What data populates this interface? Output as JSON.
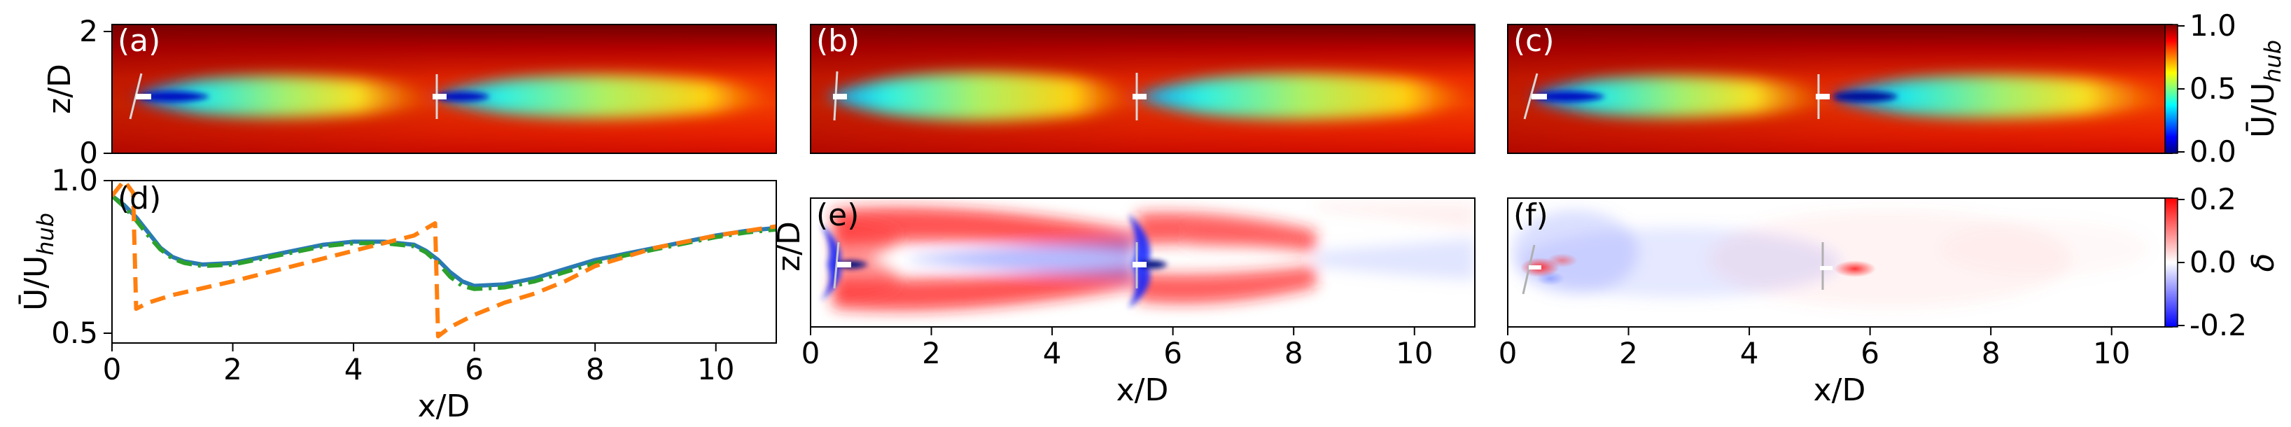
{
  "panels": {
    "a": {
      "label": "(a)",
      "label_color": "#ffffff"
    },
    "b": {
      "label": "(b)",
      "label_color": "#ffffff"
    },
    "c": {
      "label": "(c)",
      "label_color": "#ffffff"
    },
    "d": {
      "label": "(d)",
      "label_color": "#000000"
    },
    "e": {
      "label": "(e)",
      "label_color": "#000000"
    },
    "f": {
      "label": "(f)",
      "label_color": "#000000"
    }
  },
  "labels": {
    "x": "x/D",
    "z": "z/D",
    "ubar_main": "Ū/U",
    "ubar_sub": "hub",
    "delta": "δ"
  },
  "colorbars": {
    "top": {
      "ticks": [
        "1.0",
        "0.5",
        "0.0"
      ],
      "range": [
        0.0,
        1.0
      ],
      "colormap": "jet"
    },
    "bottom": {
      "ticks": [
        "0.2",
        "0.0",
        "-0.2"
      ],
      "range": [
        -0.2,
        0.2
      ],
      "colormap": "bwr"
    }
  },
  "ticks": {
    "x": [
      "0",
      "2",
      "4",
      "6",
      "8",
      "10"
    ],
    "z_top": [
      "2",
      "0"
    ],
    "d_y": [
      "1.0",
      "0.5"
    ]
  },
  "colors": {
    "blue": "#2a7ab4",
    "orange": "#ff7f0e",
    "green": "#2ca02c",
    "dark_red": "#7a0000",
    "wake_blue": "#00c8ff"
  },
  "chart_data": [
    {
      "panel": "a",
      "type": "heatmap",
      "xlabel": "",
      "ylabel": "z/D",
      "xlim": [
        0,
        11
      ],
      "ylim": [
        0,
        2.2
      ],
      "turbines_x": [
        0.4,
        5.4
      ]
    },
    {
      "panel": "b",
      "type": "heatmap",
      "xlabel": "",
      "ylabel": "",
      "xlim": [
        0,
        11
      ],
      "ylim": [
        0,
        2.2
      ],
      "turbines_x": [
        0.4,
        5.4
      ]
    },
    {
      "panel": "c",
      "type": "heatmap",
      "xlabel": "",
      "ylabel": "",
      "xlim": [
        0,
        11
      ],
      "ylim": [
        0,
        2.2
      ],
      "turbines_x": [
        0.4,
        5.4
      ]
    },
    {
      "panel": "d",
      "type": "line",
      "xlabel": "x/D",
      "ylabel": "Ū/U_hub",
      "xlim": [
        0,
        11
      ],
      "ylim": [
        0.45,
        1.0
      ],
      "grid": false,
      "series": [
        {
          "color": "#2a7ab4",
          "style": "solid",
          "x": [
            0,
            0.2,
            0.4,
            0.6,
            0.8,
            1,
            1.2,
            1.5,
            2,
            2.5,
            3,
            3.5,
            4,
            4.5,
            5,
            5.2,
            5.4,
            5.6,
            5.8,
            6,
            6.5,
            7,
            7.5,
            8,
            8.5,
            9,
            9.5,
            10,
            10.5,
            11
          ],
          "y": [
            0.95,
            0.92,
            0.88,
            0.83,
            0.78,
            0.75,
            0.735,
            0.725,
            0.73,
            0.75,
            0.77,
            0.79,
            0.8,
            0.8,
            0.79,
            0.77,
            0.74,
            0.7,
            0.67,
            0.655,
            0.66,
            0.68,
            0.71,
            0.74,
            0.76,
            0.78,
            0.8,
            0.82,
            0.835,
            0.845
          ]
        },
        {
          "color": "#2ca02c",
          "style": "dashdot",
          "x": [
            0,
            0.2,
            0.4,
            0.6,
            0.8,
            1,
            1.2,
            1.5,
            2,
            2.5,
            3,
            3.5,
            4,
            4.5,
            5,
            5.2,
            5.4,
            5.6,
            5.8,
            6,
            6.5,
            7,
            7.5,
            8,
            8.5,
            9,
            9.5,
            10,
            10.5,
            11
          ],
          "y": [
            0.95,
            0.915,
            0.87,
            0.82,
            0.775,
            0.745,
            0.73,
            0.72,
            0.725,
            0.745,
            0.765,
            0.785,
            0.795,
            0.795,
            0.785,
            0.765,
            0.73,
            0.685,
            0.655,
            0.645,
            0.65,
            0.67,
            0.7,
            0.73,
            0.755,
            0.775,
            0.795,
            0.815,
            0.83,
            0.84
          ]
        },
        {
          "color": "#ff7f0e",
          "style": "dashed",
          "x": [
            0,
            0.2,
            0.35,
            0.4,
            0.6,
            1,
            2,
            3,
            4,
            5,
            5.35,
            5.4,
            5.6,
            6,
            6.5,
            7,
            7.5,
            8,
            9,
            10,
            11
          ],
          "y": [
            0.95,
            1.0,
            0.96,
            0.58,
            0.6,
            0.625,
            0.67,
            0.72,
            0.77,
            0.82,
            0.86,
            0.49,
            0.52,
            0.56,
            0.6,
            0.63,
            0.67,
            0.72,
            0.78,
            0.82,
            0.85
          ]
        }
      ]
    },
    {
      "panel": "e",
      "type": "heatmap",
      "xlabel": "x/D",
      "ylabel": "z/D",
      "xlim": [
        0,
        11
      ],
      "turbines_x": [
        0.4,
        5.4
      ]
    },
    {
      "panel": "f",
      "type": "heatmap",
      "xlabel": "x/D",
      "ylabel": "",
      "xlim": [
        0,
        11
      ],
      "turbines_x": [
        0.4,
        5.4
      ]
    }
  ]
}
